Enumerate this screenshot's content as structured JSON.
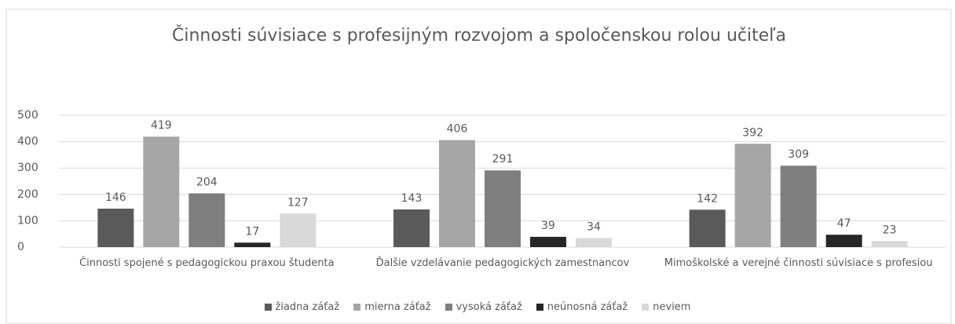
{
  "chart_data": {
    "type": "bar",
    "title": "Činnosti súvisiace s profesijným rozvojom a spoločenskou rolou učiteľa",
    "categories": [
      "Činnosti spojené s pedagogickou praxou študenta",
      "Ďalšie vzdelávanie pedagogických zamestnancov",
      "Mimoškolské a verejné činnosti súvisiace s profesiou"
    ],
    "series": [
      {
        "name": "žiadna záťaž",
        "color": "#5a5a5a",
        "values": [
          146,
          143,
          142
        ]
      },
      {
        "name": "mierna záťaž",
        "color": "#a6a6a6",
        "values": [
          419,
          406,
          392
        ]
      },
      {
        "name": "vysoká záťaž",
        "color": "#7f7f7f",
        "values": [
          204,
          291,
          309
        ]
      },
      {
        "name": "neúnosná záťaž",
        "color": "#262626",
        "values": [
          17,
          39,
          47
        ]
      },
      {
        "name": "neviem",
        "color": "#d9d9d9",
        "values": [
          127,
          34,
          23
        ]
      }
    ],
    "ylim": [
      0,
      500
    ],
    "yticks": [
      0,
      100,
      200,
      300,
      400,
      500
    ],
    "grid": true,
    "legend": "bottom"
  }
}
